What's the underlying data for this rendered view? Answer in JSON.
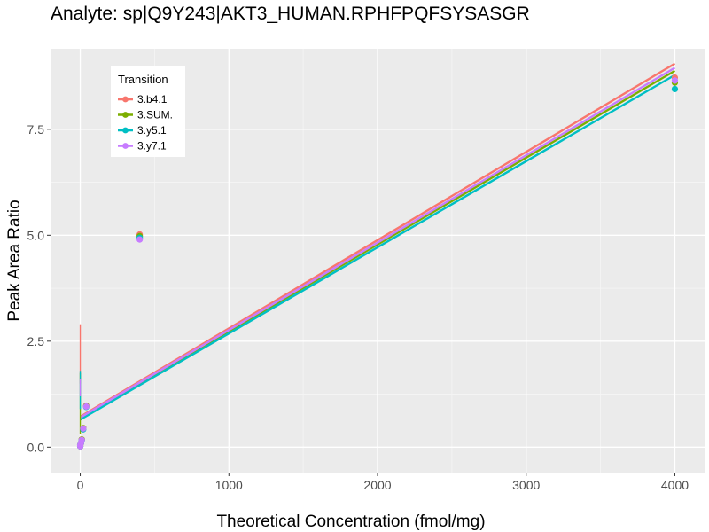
{
  "chart_data": {
    "type": "scatter",
    "title": "Analyte: sp|Q9Y243|AKT3_HUMAN.RPHFPQFSYSASGR",
    "xlabel": "Theoretical Concentration (fmol/mg)",
    "ylabel": "Peak Area Ratio",
    "xlim": [
      -200,
      4200
    ],
    "ylim": [
      -0.6,
      9.4
    ],
    "x_ticks": [
      0,
      1000,
      2000,
      3000,
      4000
    ],
    "x_tick_labels": [
      "0",
      "1000",
      "2000",
      "3000",
      "4000"
    ],
    "y_ticks": [
      0,
      2.5,
      5,
      7.5
    ],
    "y_tick_labels": [
      "0.0",
      "2.5",
      "5.0",
      "7.5"
    ],
    "grid": true,
    "legend": {
      "title": "Transition",
      "position": "top-left"
    },
    "series": [
      {
        "name": "3.b4.1",
        "color": "#F8766D",
        "points": [
          [
            0,
            0.02
          ],
          [
            0,
            0.05
          ],
          [
            5,
            0.1
          ],
          [
            10,
            0.18
          ],
          [
            20,
            0.45
          ],
          [
            40,
            0.98
          ],
          [
            400,
            5.02
          ],
          [
            4000,
            8.72
          ]
        ],
        "fit": {
          "x": [
            0,
            4000
          ],
          "y": [
            0.72,
            9.05
          ]
        },
        "error_bar": {
          "x": 0,
          "low": 1.5,
          "high": 2.9
        }
      },
      {
        "name": "3.SUM.",
        "color": "#7CAE00",
        "points": [
          [
            0,
            0.02
          ],
          [
            0,
            0.05
          ],
          [
            5,
            0.1
          ],
          [
            10,
            0.18
          ],
          [
            20,
            0.45
          ],
          [
            40,
            0.97
          ],
          [
            400,
            4.98
          ],
          [
            4000,
            8.6
          ]
        ],
        "fit": {
          "x": [
            0,
            4000
          ],
          "y": [
            0.68,
            8.88
          ]
        },
        "error_bar": {
          "x": 0,
          "low": 0.3,
          "high": 1.75
        }
      },
      {
        "name": "3.y5.1",
        "color": "#00BFC4",
        "points": [
          [
            0,
            0.02
          ],
          [
            0,
            0.05
          ],
          [
            5,
            0.1
          ],
          [
            10,
            0.16
          ],
          [
            20,
            0.42
          ],
          [
            40,
            0.95
          ],
          [
            400,
            4.94
          ],
          [
            4000,
            8.45
          ]
        ],
        "fit": {
          "x": [
            0,
            4000
          ],
          "y": [
            0.65,
            8.78
          ]
        },
        "error_bar": {
          "x": 0,
          "low": 0.9,
          "high": 1.8
        }
      },
      {
        "name": "3.y7.1",
        "color": "#C77CFF",
        "points": [
          [
            0,
            0.02
          ],
          [
            0,
            0.05
          ],
          [
            5,
            0.1
          ],
          [
            10,
            0.17
          ],
          [
            20,
            0.44
          ],
          [
            40,
            0.96
          ],
          [
            400,
            4.9
          ],
          [
            4000,
            8.65
          ]
        ],
        "fit": {
          "x": [
            0,
            4000
          ],
          "y": [
            0.7,
            8.95
          ]
        },
        "error_bar": {
          "x": 0,
          "low": 1.2,
          "high": 1.6
        }
      }
    ]
  }
}
